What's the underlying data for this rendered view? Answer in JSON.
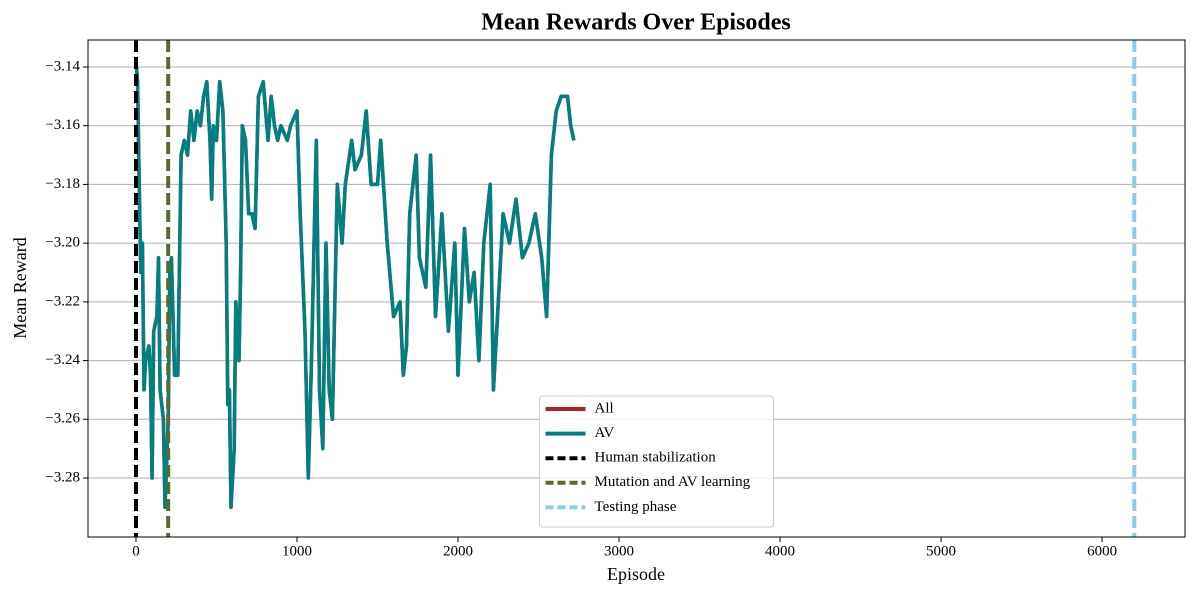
{
  "chart_data": {
    "type": "line",
    "title": "Mean Rewards Over Episodes",
    "xlabel": "Episode",
    "ylabel": "Mean Reward",
    "x": [
      0,
      10,
      20,
      30,
      40,
      50,
      60,
      80,
      90,
      100,
      110,
      130,
      140,
      150,
      170,
      180,
      200,
      210,
      220,
      240,
      260,
      280,
      300,
      320,
      340,
      360,
      380,
      400,
      420,
      440,
      460,
      470,
      480,
      500,
      520,
      540,
      560,
      570,
      580,
      590,
      610,
      620,
      640,
      650,
      660,
      680,
      700,
      720,
      740,
      760,
      790,
      820,
      840,
      860,
      880,
      900,
      940,
      960,
      1000,
      1020,
      1050,
      1070,
      1090,
      1120,
      1140,
      1160,
      1180,
      1200,
      1220,
      1250,
      1280,
      1300,
      1340,
      1360,
      1400,
      1430,
      1460,
      1500,
      1520,
      1560,
      1600,
      1640,
      1660,
      1680,
      1700,
      1740,
      1760,
      1800,
      1830,
      1860,
      1900,
      1940,
      1980,
      2000,
      2040,
      2070,
      2100,
      2130,
      2160,
      2200,
      2220,
      2240,
      2280,
      2320,
      2360,
      2400,
      2440,
      2480,
      2520,
      2550,
      2580,
      2610,
      2640,
      2680,
      2700,
      2720
    ],
    "series": [
      {
        "name": "All",
        "color": "#b22222",
        "values": [
          -3.138,
          -3.145,
          -3.18,
          -3.21,
          -3.2,
          -3.25,
          -3.24,
          -3.235,
          -3.245,
          -3.28,
          -3.23,
          -3.225,
          -3.205,
          -3.25,
          -3.26,
          -3.29,
          -3.26,
          -3.21,
          -3.205,
          -3.245,
          -3.245,
          -3.17,
          -3.165,
          -3.17,
          -3.155,
          -3.165,
          -3.155,
          -3.16,
          -3.15,
          -3.145,
          -3.165,
          -3.185,
          -3.16,
          -3.165,
          -3.145,
          -3.155,
          -3.2,
          -3.255,
          -3.25,
          -3.29,
          -3.27,
          -3.22,
          -3.24,
          -3.21,
          -3.16,
          -3.165,
          -3.19,
          -3.19,
          -3.195,
          -3.15,
          -3.145,
          -3.165,
          -3.15,
          -3.16,
          -3.165,
          -3.16,
          -3.165,
          -3.16,
          -3.155,
          -3.19,
          -3.23,
          -3.28,
          -3.24,
          -3.165,
          -3.25,
          -3.27,
          -3.2,
          -3.25,
          -3.26,
          -3.18,
          -3.2,
          -3.18,
          -3.165,
          -3.175,
          -3.17,
          -3.155,
          -3.18,
          -3.18,
          -3.165,
          -3.2,
          -3.225,
          -3.22,
          -3.245,
          -3.235,
          -3.19,
          -3.17,
          -3.205,
          -3.215,
          -3.17,
          -3.225,
          -3.19,
          -3.23,
          -3.2,
          -3.245,
          -3.195,
          -3.22,
          -3.21,
          -3.24,
          -3.2,
          -3.18,
          -3.25,
          -3.23,
          -3.19,
          -3.2,
          -3.185,
          -3.205,
          -3.2,
          -3.19,
          -3.205,
          -3.225,
          -3.17,
          -3.155,
          -3.15,
          -3.15,
          -3.16,
          -3.165
        ]
      },
      {
        "name": "AV",
        "color": "#008080",
        "values": [
          -3.138,
          -3.145,
          -3.18,
          -3.21,
          -3.2,
          -3.25,
          -3.24,
          -3.235,
          -3.245,
          -3.28,
          -3.23,
          -3.225,
          -3.205,
          -3.25,
          -3.26,
          -3.29,
          -3.26,
          -3.21,
          -3.205,
          -3.245,
          -3.245,
          -3.17,
          -3.165,
          -3.17,
          -3.155,
          -3.165,
          -3.155,
          -3.16,
          -3.15,
          -3.145,
          -3.165,
          -3.185,
          -3.16,
          -3.165,
          -3.145,
          -3.155,
          -3.2,
          -3.255,
          -3.25,
          -3.29,
          -3.27,
          -3.22,
          -3.24,
          -3.21,
          -3.16,
          -3.165,
          -3.19,
          -3.19,
          -3.195,
          -3.15,
          -3.145,
          -3.165,
          -3.15,
          -3.16,
          -3.165,
          -3.16,
          -3.165,
          -3.16,
          -3.155,
          -3.19,
          -3.23,
          -3.28,
          -3.24,
          -3.165,
          -3.25,
          -3.27,
          -3.2,
          -3.25,
          -3.26,
          -3.18,
          -3.2,
          -3.18,
          -3.165,
          -3.175,
          -3.17,
          -3.155,
          -3.18,
          -3.18,
          -3.165,
          -3.2,
          -3.225,
          -3.22,
          -3.245,
          -3.235,
          -3.19,
          -3.17,
          -3.205,
          -3.215,
          -3.17,
          -3.225,
          -3.19,
          -3.23,
          -3.2,
          -3.245,
          -3.195,
          -3.22,
          -3.21,
          -3.24,
          -3.2,
          -3.18,
          -3.25,
          -3.23,
          -3.19,
          -3.2,
          -3.185,
          -3.205,
          -3.2,
          -3.19,
          -3.205,
          -3.225,
          -3.17,
          -3.155,
          -3.15,
          -3.15,
          -3.16,
          -3.165
        ]
      }
    ],
    "vlines": [
      {
        "name": "Human stabilization",
        "color": "#000000",
        "x": 0
      },
      {
        "name": "Mutation and AV learning",
        "color": "#556b2f",
        "x": 200
      },
      {
        "name": "Testing phase",
        "color": "#87ceeb",
        "x": 6200
      }
    ],
    "xlim": [
      -298,
      6515
    ],
    "ylim": [
      -3.3001,
      -3.1308
    ],
    "xticks": [
      0,
      1000,
      2000,
      3000,
      4000,
      5000,
      6000
    ],
    "yticks": [
      {
        "value": -3.28,
        "label": "−3.28"
      },
      {
        "value": -3.26,
        "label": "−3.26"
      },
      {
        "value": -3.24,
        "label": "−3.24"
      },
      {
        "value": -3.22,
        "label": "−3.22"
      },
      {
        "value": -3.2,
        "label": "−3.20"
      },
      {
        "value": -3.18,
        "label": "−3.18"
      },
      {
        "value": -3.16,
        "label": "−3.16"
      },
      {
        "value": -3.14,
        "label": "−3.14"
      }
    ],
    "grid": "y",
    "legend": "lower center"
  }
}
